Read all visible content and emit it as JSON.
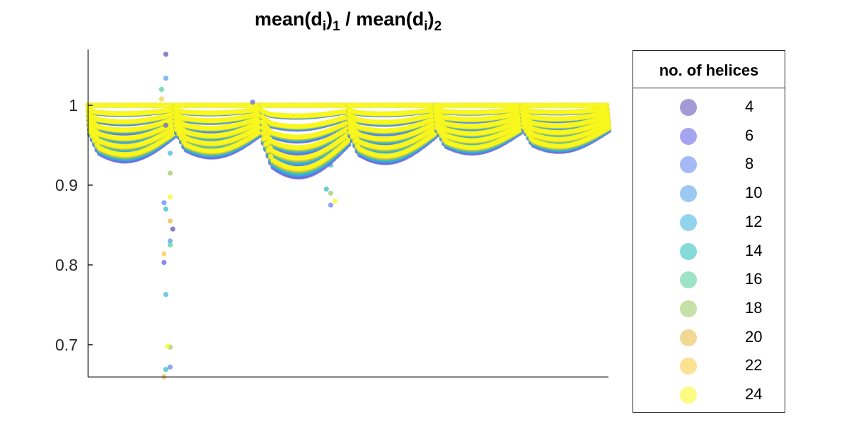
{
  "chart_data": {
    "type": "scatter",
    "title": {
      "base1": "mean(d",
      "sub1": "i",
      "close1": ")",
      "idx1": "1",
      "sep": " / mean(d",
      "sub2": "i",
      "close2": ")",
      "idx2": "2"
    },
    "ylim": [
      0.66,
      1.07
    ],
    "yticks": [
      0.7,
      0.8,
      0.9,
      1
    ],
    "ytick_labels": [
      "0.7",
      "0.8",
      "0.9",
      "1"
    ],
    "xticks_shown": false,
    "legend": {
      "title": "no. of helices",
      "placement": "right-outside",
      "entries": [
        {
          "label": "4",
          "color": "#5a48b4"
        },
        {
          "label": "6",
          "color": "#5a5ae6"
        },
        {
          "label": "8",
          "color": "#5a82f0"
        },
        {
          "label": "10",
          "color": "#4a9aea"
        },
        {
          "label": "12",
          "color": "#38b0e0"
        },
        {
          "label": "14",
          "color": "#22bcbc"
        },
        {
          "label": "16",
          "color": "#4ccc96"
        },
        {
          "label": "18",
          "color": "#98c860"
        },
        {
          "label": "20",
          "color": "#e6b83c"
        },
        {
          "label": "22",
          "color": "#fac83a"
        },
        {
          "label": "24",
          "color": "#f8f81c"
        }
      ]
    },
    "series_groups": [
      {
        "x_range": [
          0,
          1
        ],
        "bowl_depth_min": 0.93,
        "outliers": [
          [
            0.9,
            1.064
          ],
          [
            0.9,
            1.034
          ],
          [
            0.85,
            1.02
          ],
          [
            0.85,
            1.008
          ],
          [
            0.9,
            0.975
          ],
          [
            0.95,
            0.94
          ],
          [
            0.95,
            0.915
          ],
          [
            0.95,
            0.885
          ],
          [
            0.88,
            0.878
          ],
          [
            0.9,
            0.87
          ],
          [
            0.95,
            0.855
          ],
          [
            0.98,
            0.845
          ],
          [
            0.95,
            0.83
          ],
          [
            0.95,
            0.825
          ],
          [
            0.88,
            0.814
          ],
          [
            0.88,
            0.803
          ],
          [
            0.9,
            0.763
          ],
          [
            0.95,
            0.697
          ],
          [
            0.92,
            0.698
          ],
          [
            0.95,
            0.672
          ],
          [
            0.9,
            0.669
          ],
          [
            0.88,
            0.66
          ]
        ]
      },
      {
        "x_range": [
          1,
          2
        ],
        "bowl_depth_min": 0.935,
        "outliers": [
          [
            0.9,
            1.004
          ],
          [
            1.8,
            0.925
          ],
          [
            1.8,
            0.89
          ],
          [
            1.85,
            0.88
          ],
          [
            1.8,
            0.875
          ],
          [
            1.75,
            0.895
          ]
        ]
      },
      {
        "x_range": [
          2,
          3
        ],
        "bowl_depth_min": 0.91,
        "outliers": []
      },
      {
        "x_range": [
          3,
          4
        ],
        "bowl_depth_min": 0.928,
        "outliers": []
      },
      {
        "x_range": [
          4,
          5
        ],
        "bowl_depth_min": 0.94,
        "outliers": []
      },
      {
        "x_range": [
          5,
          6
        ],
        "bowl_depth_min": 0.942,
        "outliers": []
      }
    ]
  }
}
